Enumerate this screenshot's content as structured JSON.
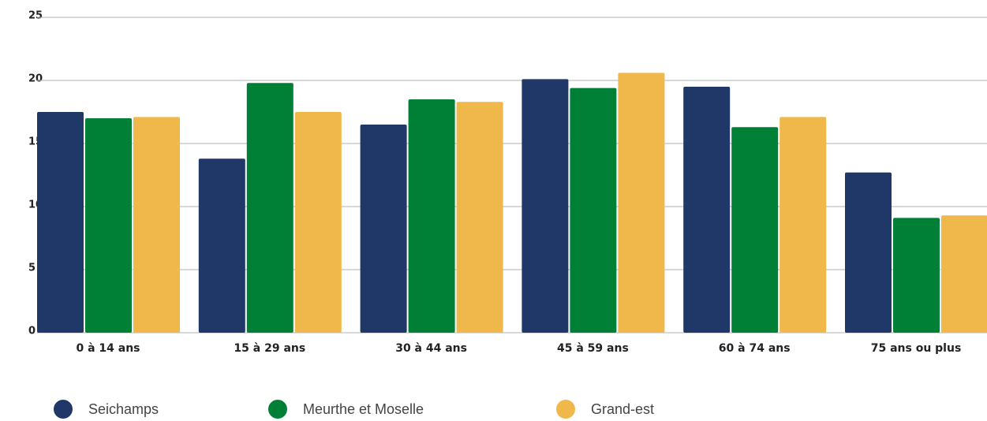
{
  "chart_data": {
    "type": "bar",
    "categories": [
      "0 à 14 ans",
      "15 à 29 ans",
      "30 à 44 ans",
      "45 à 59 ans",
      "60 à 74 ans",
      "75 ans ou plus"
    ],
    "series": [
      {
        "name": "Seichamps",
        "color": "#1f3868",
        "values": [
          17.5,
          13.8,
          16.5,
          20.1,
          19.5,
          12.7
        ]
      },
      {
        "name": "Meurthe et Moselle",
        "color": "#008037",
        "values": [
          17.0,
          19.8,
          18.5,
          19.4,
          16.3,
          9.1
        ]
      },
      {
        "name": "Grand-est",
        "color": "#f0b84a",
        "values": [
          17.1,
          17.5,
          18.3,
          20.6,
          17.1,
          9.3
        ]
      }
    ],
    "ylim": [
      0,
      25
    ],
    "yticks": [
      0,
      5,
      10,
      15,
      20,
      25
    ],
    "grid": true,
    "legend": "bottom"
  }
}
